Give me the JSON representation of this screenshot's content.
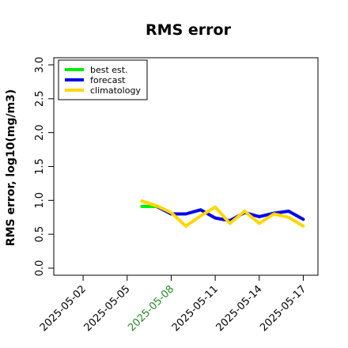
{
  "chart_data": {
    "type": "line",
    "title": "RMS error",
    "xlabel": "",
    "ylabel": "RMS error, log10(mg/m3)",
    "ylim": [
      0.0,
      3.0
    ],
    "yticks": [
      "0.0",
      "0.5",
      "1.0",
      "1.5",
      "2.0",
      "2.5",
      "3.0"
    ],
    "x_dates": [
      "2025-05-06",
      "2025-05-07",
      "2025-05-08",
      "2025-05-09",
      "2025-05-10",
      "2025-05-11",
      "2025-05-12",
      "2025-05-13",
      "2025-05-14",
      "2025-05-15",
      "2025-05-16",
      "2025-05-17"
    ],
    "xticks": [
      {
        "label": "2025-05-02",
        "date": "2025-05-02",
        "color": "#000000"
      },
      {
        "label": "2025-05-05",
        "date": "2025-05-05",
        "color": "#000000"
      },
      {
        "label": "2025-05-08",
        "date": "2025-05-08",
        "color": "#228b22"
      },
      {
        "label": "2025-05-11",
        "date": "2025-05-11",
        "color": "#000000"
      },
      {
        "label": "2025-05-14",
        "date": "2025-05-14",
        "color": "#000000"
      },
      {
        "label": "2025-05-17",
        "date": "2025-05-17",
        "color": "#000000"
      }
    ],
    "xlim": [
      "2025-04-30",
      "2025-05-18"
    ],
    "series": [
      {
        "name": "best est.",
        "color": "#00ee00",
        "x": [
          "2025-05-06",
          "2025-05-07"
        ],
        "values": [
          0.91,
          0.91
        ]
      },
      {
        "name": "forecast",
        "color": "#0000ee",
        "x": [
          "2025-05-07",
          "2025-05-08",
          "2025-05-09",
          "2025-05-10",
          "2025-05-11",
          "2025-05-12",
          "2025-05-13",
          "2025-05-14",
          "2025-05-15",
          "2025-05-16",
          "2025-05-17"
        ],
        "values": [
          0.91,
          0.8,
          0.8,
          0.86,
          0.74,
          0.7,
          0.82,
          0.76,
          0.81,
          0.84,
          0.72
        ]
      },
      {
        "name": "climatology",
        "color": "#ffd700",
        "x": [
          "2025-05-06",
          "2025-05-07",
          "2025-05-08",
          "2025-05-09",
          "2025-05-10",
          "2025-05-11",
          "2025-05-12",
          "2025-05-13",
          "2025-05-14",
          "2025-05-15",
          "2025-05-16",
          "2025-05-17"
        ],
        "values": [
          0.99,
          0.92,
          0.82,
          0.62,
          0.77,
          0.9,
          0.66,
          0.84,
          0.66,
          0.8,
          0.75,
          0.62
        ]
      }
    ],
    "legend_position": "top-left",
    "grid": false
  }
}
